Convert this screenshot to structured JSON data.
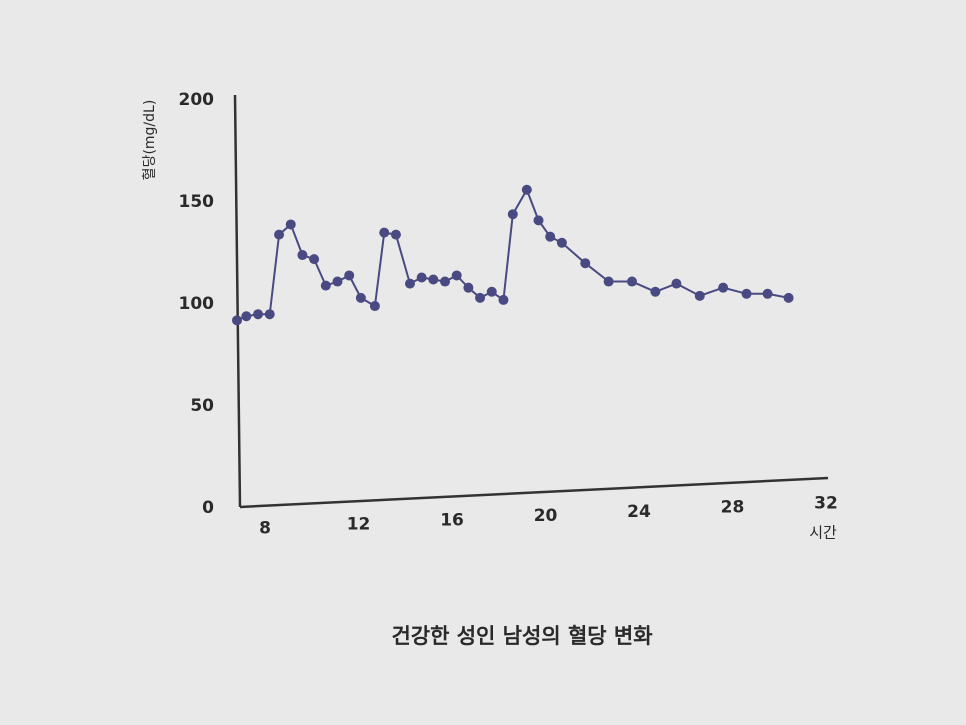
{
  "chart_data": {
    "type": "line",
    "title": "건강한 성인 남성의 혈당 변화",
    "y_label": "혈당(mg/dL)",
    "x_label": "시간",
    "x": [
      6.8,
      7.2,
      7.7,
      8.2,
      8.6,
      9.1,
      9.6,
      10.1,
      10.6,
      11.1,
      11.6,
      12.1,
      12.7,
      13.1,
      13.6,
      14.2,
      14.7,
      15.2,
      15.7,
      16.2,
      16.7,
      17.2,
      17.7,
      18.2,
      18.6,
      19.2,
      19.7,
      20.2,
      20.7,
      21.7,
      22.7,
      23.7,
      24.7,
      25.6,
      26.6,
      27.6,
      28.6,
      29.5,
      30.4
    ],
    "values": [
      92,
      94,
      95,
      95,
      134,
      139,
      124,
      122,
      109,
      111,
      114,
      103,
      99,
      135,
      134,
      110,
      113,
      112,
      111,
      114,
      108,
      103,
      106,
      102,
      144,
      156,
      141,
      133,
      130,
      120,
      111,
      111,
      106,
      110,
      104,
      108,
      105,
      105,
      103
    ],
    "color": "#4a4a82",
    "xlim": [
      6.8,
      32
    ],
    "xticks": [
      8,
      12,
      16,
      20,
      24,
      28,
      32
    ],
    "ylim": [
      0,
      200
    ],
    "yticks": [
      0,
      50,
      100,
      150,
      200
    ]
  }
}
